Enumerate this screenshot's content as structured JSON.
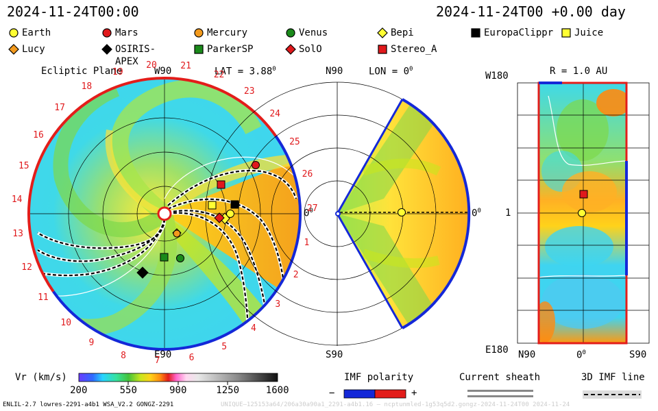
{
  "header": {
    "time_left": "2024-11-24T00:00",
    "time_right": "2024-11-24T00 +0.00 day"
  },
  "legend": [
    {
      "label": "Earth",
      "marker": "circle",
      "color": "#ffff33",
      "key": "earth"
    },
    {
      "label": "Mars",
      "marker": "circle",
      "color": "#e0191c",
      "key": "mars"
    },
    {
      "label": "Mercury",
      "marker": "circle",
      "color": "#f39a1d",
      "key": "mercury"
    },
    {
      "label": "Venus",
      "marker": "circle",
      "color": "#1a8a1a",
      "key": "venus"
    },
    {
      "label": "Bepi",
      "marker": "diamond",
      "color": "#ffff33",
      "key": "bepi"
    },
    {
      "label": "EuropaClippr",
      "marker": "square",
      "color": "#000000",
      "key": "europaclipper"
    },
    {
      "label": "Juice",
      "marker": "square",
      "color": "#ffff33",
      "key": "juice"
    },
    {
      "label": "Lucy",
      "marker": "diamond",
      "color": "#f39a1d",
      "key": "lucy"
    },
    {
      "label": "OSIRIS-APEX",
      "marker": "diamond",
      "color": "#000000",
      "key": "osiris"
    },
    {
      "label": "ParkerSP",
      "marker": "square",
      "color": "#1a8a1a",
      "key": "parker"
    },
    {
      "label": "SolO",
      "marker": "diamond",
      "color": "#e0191c",
      "key": "solo"
    },
    {
      "label": "Stereo_A",
      "marker": "square",
      "color": "#e0191c",
      "key": "stereoa"
    }
  ],
  "ecliptic": {
    "title": "Ecliptic Plane",
    "lat_label": "LAT = 3.88",
    "lat_deg": "0",
    "top_label": "W90",
    "bottom_label": "E90",
    "right_label": "0",
    "right_deg": "0",
    "carrington_numbers": [
      "20",
      "21",
      "22",
      "23",
      "24",
      "25",
      "26",
      "27",
      "1",
      "2",
      "3",
      "4",
      "5",
      "6",
      "7",
      "8",
      "9",
      "10",
      "11",
      "12",
      "13",
      "14",
      "15",
      "16",
      "17",
      "18",
      "19"
    ]
  },
  "meridional": {
    "top_label": "N90",
    "lon_label": "LON = 0",
    "lon_deg": "0",
    "bottom_label": "S90",
    "right_label": "0",
    "right_deg": "0"
  },
  "synoptic": {
    "r_label": "R = 1.0 AU",
    "top_left": "W180",
    "bottom_left": "E180",
    "mid_left": "1",
    "x_left": "N90",
    "x_mid": "0",
    "x_mid_deg": "0",
    "x_right": "S90"
  },
  "colorbar": {
    "label": "Vr (km/s)",
    "ticks": [
      "200",
      "550",
      "900",
      "1250",
      "1600"
    ]
  },
  "imf_polarity": {
    "label": "IMF polarity",
    "minus": "−",
    "plus": "+"
  },
  "current_sheath": {
    "label": "Current sheath"
  },
  "imf_line": {
    "label": "3D IMF line"
  },
  "footer": {
    "left": "ENLIL-2.7 lowres-2291-a4b1 WSA_V2.2 GONGZ-2291",
    "right": "UNIQUE—125153a64/206a30a90a1_2291-a4b1.16 — ncptunmled-1g53q5d2.gongz-2024-11-24T00 2024-11-24"
  },
  "chart_data": {
    "type": "heatmap",
    "quantity": "Vr (km/s)",
    "colorbar_range": [
      200,
      1600
    ],
    "colorbar_ticks": [
      200,
      550,
      900,
      1250,
      1600
    ],
    "time": "2024-11-24T00:00",
    "panels": [
      "Ecliptic Plane",
      "Meridional plane LON = 0",
      "R = 1.0 AU"
    ],
    "lat": 3.88,
    "lon": 0,
    "r_au": 1.0
  }
}
